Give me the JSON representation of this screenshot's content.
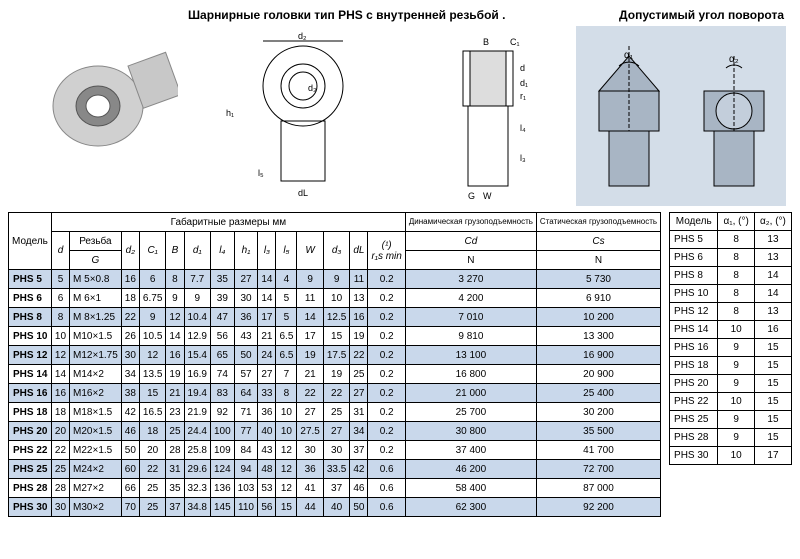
{
  "titles": {
    "left": "Шарнирные головки тип  PHS с внутренней резьбой .",
    "right": "Допустимый угол поворота"
  },
  "mainTable": {
    "modelHeader": "Модель",
    "dimGroupHeader": "Габаритные размеры мм",
    "dynHeader": "Динамическая грузоподъемность",
    "statHeader": "Статическая грузоподъемность",
    "threadHeader": "Резьба",
    "cols": [
      "d",
      "G",
      "d₂",
      "C₁",
      "B",
      "d₁",
      "l₄",
      "h₁",
      "l₃",
      "l₅",
      "W",
      "d₃",
      "dL",
      "r₁s min",
      "Cd",
      "Cs"
    ],
    "unitN": "N",
    "unitNote": "(¹)",
    "rows": [
      {
        "m": "PHS  5",
        "c": [
          "5",
          "M  5×0.8",
          "16",
          "6",
          "8",
          "7.7",
          "35",
          "27",
          "14",
          "4",
          "9",
          "9",
          "11",
          "0.2",
          "3 270",
          "5 730"
        ]
      },
      {
        "m": "PHS  6",
        "c": [
          "6",
          "M  6×1",
          "18",
          "6.75",
          "9",
          "9",
          "39",
          "30",
          "14",
          "5",
          "11",
          "10",
          "13",
          "0.2",
          "4 200",
          "6 910"
        ]
      },
      {
        "m": "PHS  8",
        "c": [
          "8",
          "M  8×1.25",
          "22",
          "9",
          "12",
          "10.4",
          "47",
          "36",
          "17",
          "5",
          "14",
          "12.5",
          "16",
          "0.2",
          "7 010",
          "10 200"
        ]
      },
      {
        "m": "PHS 10",
        "c": [
          "10",
          "M10×1.5",
          "26",
          "10.5",
          "14",
          "12.9",
          "56",
          "43",
          "21",
          "6.5",
          "17",
          "15",
          "19",
          "0.2",
          "9 810",
          "13 300"
        ]
      },
      {
        "m": "PHS 12",
        "c": [
          "12",
          "M12×1.75",
          "30",
          "12",
          "16",
          "15.4",
          "65",
          "50",
          "24",
          "6.5",
          "19",
          "17.5",
          "22",
          "0.2",
          "13 100",
          "16 900"
        ]
      },
      {
        "m": "PHS 14",
        "c": [
          "14",
          "M14×2",
          "34",
          "13.5",
          "19",
          "16.9",
          "74",
          "57",
          "27",
          "7",
          "21",
          "19",
          "25",
          "0.2",
          "16 800",
          "20 900"
        ]
      },
      {
        "m": "PHS 16",
        "c": [
          "16",
          "M16×2",
          "38",
          "15",
          "21",
          "19.4",
          "83",
          "64",
          "33",
          "8",
          "22",
          "22",
          "27",
          "0.2",
          "21 000",
          "25 400"
        ]
      },
      {
        "m": "PHS 18",
        "c": [
          "18",
          "M18×1.5",
          "42",
          "16.5",
          "23",
          "21.9",
          "92",
          "71",
          "36",
          "10",
          "27",
          "25",
          "31",
          "0.2",
          "25 700",
          "30 200"
        ]
      },
      {
        "m": "PHS 20",
        "c": [
          "20",
          "M20×1.5",
          "46",
          "18",
          "25",
          "24.4",
          "100",
          "77",
          "40",
          "10",
          "27.5",
          "27",
          "34",
          "0.2",
          "30 800",
          "35 500"
        ]
      },
      {
        "m": "PHS 22",
        "c": [
          "22",
          "M22×1.5",
          "50",
          "20",
          "28",
          "25.8",
          "109",
          "84",
          "43",
          "12",
          "30",
          "30",
          "37",
          "0.2",
          "37 400",
          "41 700"
        ]
      },
      {
        "m": "PHS 25",
        "c": [
          "25",
          "M24×2",
          "60",
          "22",
          "31",
          "29.6",
          "124",
          "94",
          "48",
          "12",
          "36",
          "33.5",
          "42",
          "0.6",
          "46 200",
          "72 700"
        ]
      },
      {
        "m": "PHS 28",
        "c": [
          "28",
          "M27×2",
          "66",
          "25",
          "35",
          "32.3",
          "136",
          "103",
          "53",
          "12",
          "41",
          "37",
          "46",
          "0.6",
          "58 400",
          "87 000"
        ]
      },
      {
        "m": "PHS 30",
        "c": [
          "30",
          "M30×2",
          "70",
          "25",
          "37",
          "34.8",
          "145",
          "110",
          "56",
          "15",
          "44",
          "40",
          "50",
          "0.6",
          "62 300",
          "92 200"
        ]
      }
    ]
  },
  "angleTable": {
    "headers": [
      "Модель",
      "α₁, (°)",
      "α₂, (°)"
    ],
    "rows": [
      [
        "PHS 5",
        "8",
        "13"
      ],
      [
        "PHS 6",
        "8",
        "13"
      ],
      [
        "PHS 8",
        "8",
        "14"
      ],
      [
        "PHS 10",
        "8",
        "14"
      ],
      [
        "PHS 12",
        "8",
        "13"
      ],
      [
        "PHS 14",
        "10",
        "16"
      ],
      [
        "PHS 16",
        "9",
        "15"
      ],
      [
        "PHS 18",
        "9",
        "15"
      ],
      [
        "PHS 20",
        "9",
        "15"
      ],
      [
        "PHS 22",
        "10",
        "15"
      ],
      [
        "PHS 25",
        "9",
        "15"
      ],
      [
        "PHS 28",
        "9",
        "15"
      ],
      [
        "PHS 30",
        "10",
        "17"
      ]
    ]
  },
  "diagramLabels": {
    "d2": "d₂",
    "B": "B",
    "C1": "C₁",
    "d1": "d₁",
    "d": "d",
    "r1": "r₁",
    "h1": "h₁",
    "d3": "d₃",
    "l4": "l₄",
    "l3": "l₃",
    "l5": "l₅",
    "dL": "dL",
    "G": "G",
    "W": "W",
    "a1": "α₁",
    "a2": "α₂"
  },
  "colors": {
    "rowBlue": "#c9d8eb",
    "rowWhite": "#ffffff",
    "diagramBg": "#d3dde8"
  }
}
